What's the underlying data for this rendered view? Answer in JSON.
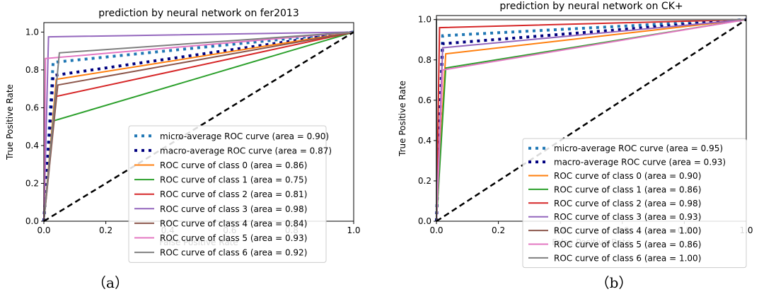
{
  "captions": [
    "（a）",
    "（b）"
  ],
  "chart_data": [
    {
      "type": "line",
      "title": "prediction by neural network on fer2013",
      "xlabel": "False Positive Rate",
      "ylabel": "True Positive Rate",
      "xlim": [
        0.0,
        1.0
      ],
      "ylim": [
        0.0,
        1.05
      ],
      "xticks": [
        "0.0",
        "0.2",
        "0.4",
        "0.6",
        "0.8",
        "1.0"
      ],
      "yticks": [
        "0.0",
        "0.2",
        "0.4",
        "0.6",
        "0.8",
        "1.0"
      ],
      "legend_position": "lower-right",
      "series": [
        {
          "name": "micro-average ROC curve (area = 0.90)",
          "color": "#1f77b4",
          "style": "dotted-thick",
          "x": [
            0.0,
            0.03,
            1.0
          ],
          "y": [
            0.0,
            0.84,
            1.0
          ]
        },
        {
          "name": "macro-average ROC curve (area = 0.87)",
          "color": "#000080",
          "style": "dotted-thick",
          "x": [
            0.0,
            0.03,
            1.0
          ],
          "y": [
            0.0,
            0.77,
            1.0
          ]
        },
        {
          "name": "ROC curve of class 0 (area = 0.86)",
          "color": "#ff7f0e",
          "style": "solid",
          "x": [
            0.0,
            0.04,
            1.0
          ],
          "y": [
            0.0,
            0.75,
            1.0
          ]
        },
        {
          "name": "ROC curve of class 1 (area = 0.75)",
          "color": "#2ca02c",
          "style": "solid",
          "x": [
            0.0,
            0.03,
            1.0
          ],
          "y": [
            0.0,
            0.53,
            1.0
          ]
        },
        {
          "name": "ROC curve of class 2 (area = 0.81)",
          "color": "#d62728",
          "style": "solid",
          "x": [
            0.0,
            0.04,
            1.0
          ],
          "y": [
            0.0,
            0.66,
            1.0
          ]
        },
        {
          "name": "ROC curve of class 3 (area = 0.98)",
          "color": "#9467bd",
          "style": "solid",
          "x": [
            0.0,
            0.015,
            1.0
          ],
          "y": [
            0.0,
            0.975,
            1.0
          ]
        },
        {
          "name": "ROC curve of class 4 (area = 0.84)",
          "color": "#8c564b",
          "style": "solid",
          "x": [
            0.0,
            0.045,
            1.0
          ],
          "y": [
            0.0,
            0.72,
            1.0
          ]
        },
        {
          "name": "ROC curve of class 5 (area = 0.93)",
          "color": "#e377c2",
          "style": "solid",
          "x": [
            0.0,
            0.005,
            1.0
          ],
          "y": [
            0.0,
            0.86,
            1.0
          ]
        },
        {
          "name": "ROC curve of class 6 (area = 0.92)",
          "color": "#7f7f7f",
          "style": "solid",
          "x": [
            0.0,
            0.05,
            1.0
          ],
          "y": [
            0.0,
            0.89,
            1.0
          ]
        },
        {
          "name": "",
          "color": "#000000",
          "style": "dashed",
          "x": [
            0.0,
            1.0
          ],
          "y": [
            0.0,
            1.0
          ]
        }
      ]
    },
    {
      "type": "line",
      "title": "prediction by neural network on CK+",
      "xlabel": "False Positive Rate",
      "ylabel": "True Positive Rate",
      "xlim": [
        0.0,
        1.0
      ],
      "ylim": [
        0.0,
        1.02
      ],
      "xticks": [
        "0.0",
        "0.2",
        "0.4",
        "0.6",
        "0.8",
        "1.0"
      ],
      "yticks": [
        "0.0",
        "0.2",
        "0.4",
        "0.6",
        "0.8",
        "1.0"
      ],
      "legend_position": "lower-right",
      "series": [
        {
          "name": "micro-average ROC curve (area = 0.95)",
          "color": "#1f77b4",
          "style": "dotted-thick",
          "x": [
            0.0,
            0.02,
            1.0
          ],
          "y": [
            0.0,
            0.92,
            1.0
          ]
        },
        {
          "name": "macro-average ROC curve (area = 0.93)",
          "color": "#000080",
          "style": "dotted-thick",
          "x": [
            0.0,
            0.02,
            1.0
          ],
          "y": [
            0.0,
            0.88,
            1.0
          ]
        },
        {
          "name": "ROC curve of class 0 (area = 0.90)",
          "color": "#ff7f0e",
          "style": "solid",
          "x": [
            0.0,
            0.03,
            1.0
          ],
          "y": [
            0.0,
            0.83,
            1.0
          ]
        },
        {
          "name": "ROC curve of class 1 (area = 0.86)",
          "color": "#2ca02c",
          "style": "solid",
          "x": [
            0.0,
            0.03,
            1.0
          ],
          "y": [
            0.0,
            0.76,
            1.0
          ]
        },
        {
          "name": "ROC curve of class 2 (area = 0.98)",
          "color": "#d62728",
          "style": "solid",
          "x": [
            0.0,
            0.01,
            1.0
          ],
          "y": [
            0.0,
            0.96,
            1.0
          ]
        },
        {
          "name": "ROC curve of class 3 (area = 0.93)",
          "color": "#9467bd",
          "style": "solid",
          "x": [
            0.0,
            0.02,
            1.0
          ],
          "y": [
            0.0,
            0.86,
            1.0
          ]
        },
        {
          "name": "ROC curve of class 4 (area = 1.00)",
          "color": "#8c564b",
          "style": "solid",
          "x": [
            0.0,
            0.0,
            1.0
          ],
          "y": [
            0.0,
            1.0,
            1.0
          ]
        },
        {
          "name": "ROC curve of class 5 (area = 0.86)",
          "color": "#e377c2",
          "style": "solid",
          "x": [
            0.0,
            0.02,
            1.0
          ],
          "y": [
            0.0,
            0.75,
            1.0
          ]
        },
        {
          "name": "ROC curve of class 6 (area = 1.00)",
          "color": "#7f7f7f",
          "style": "solid",
          "x": [
            0.0,
            0.0,
            1.0
          ],
          "y": [
            0.0,
            1.0,
            1.0
          ]
        },
        {
          "name": "",
          "color": "#000000",
          "style": "dashed",
          "x": [
            0.0,
            1.0
          ],
          "y": [
            0.0,
            1.0
          ]
        }
      ]
    }
  ]
}
